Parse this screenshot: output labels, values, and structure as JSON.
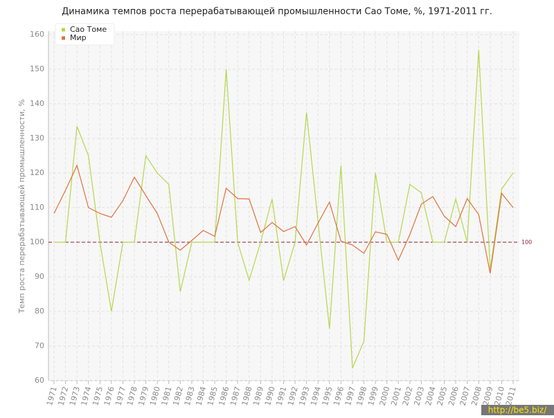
{
  "chart_data": {
    "type": "line",
    "title": "Динамика темпов роста перерабатывающей промышленности Сао Томе, %, 1971-2011 гг.",
    "y_label": "Темп роста перерабатывающей промышленности, %",
    "categories": [
      "1971",
      "1972",
      "1973",
      "1974",
      "1975",
      "1976",
      "1977",
      "1978",
      "1979",
      "1980",
      "1981",
      "1982",
      "1983",
      "1984",
      "1985",
      "1986",
      "1987",
      "1988",
      "1989",
      "1990",
      "1991",
      "1992",
      "1993",
      "1994",
      "1995",
      "1996",
      "1997",
      "1998",
      "1999",
      "2000",
      "2001",
      "2002",
      "2003",
      "2004",
      "2005",
      "2006",
      "2007",
      "2008",
      "2009",
      "2010",
      "2011"
    ],
    "series": [
      {
        "name": "Сао Томе",
        "color": "#b5d64a",
        "values": [
          100,
          100,
          133.5,
          125,
          100,
          80,
          100,
          100,
          125,
          120,
          116.7,
          85.7,
          100,
          100,
          100,
          150,
          100,
          89,
          100,
          112.5,
          88.9,
          100,
          137.5,
          106,
          75,
          122.2,
          63.6,
          71.4,
          120,
          100,
          100,
          116.7,
          114.3,
          100,
          100,
          112.5,
          100,
          155.6,
          92,
          115.4,
          120
        ]
      },
      {
        "name": "Мир",
        "color": "#e0703c",
        "values": [
          108.3,
          115,
          122.2,
          110,
          108.3,
          107.2,
          112,
          118.8,
          113.5,
          108.3,
          100,
          97.7,
          100.5,
          103.4,
          101.7,
          115.6,
          112.6,
          112.5,
          102.8,
          105.7,
          103.1,
          104.5,
          99.2,
          105.5,
          111.6,
          100.3,
          99.2,
          96.8,
          103,
          102.3,
          94.8,
          102.2,
          111,
          113.2,
          107.5,
          104.5,
          112.6,
          108,
          91,
          114.1,
          110
        ]
      }
    ],
    "ylim": [
      60,
      160
    ],
    "yticks": [
      60,
      70,
      80,
      90,
      100,
      110,
      120,
      130,
      140,
      150,
      160
    ],
    "grid": true,
    "reference_line": 100,
    "watermark": "http://be5.biz/"
  }
}
